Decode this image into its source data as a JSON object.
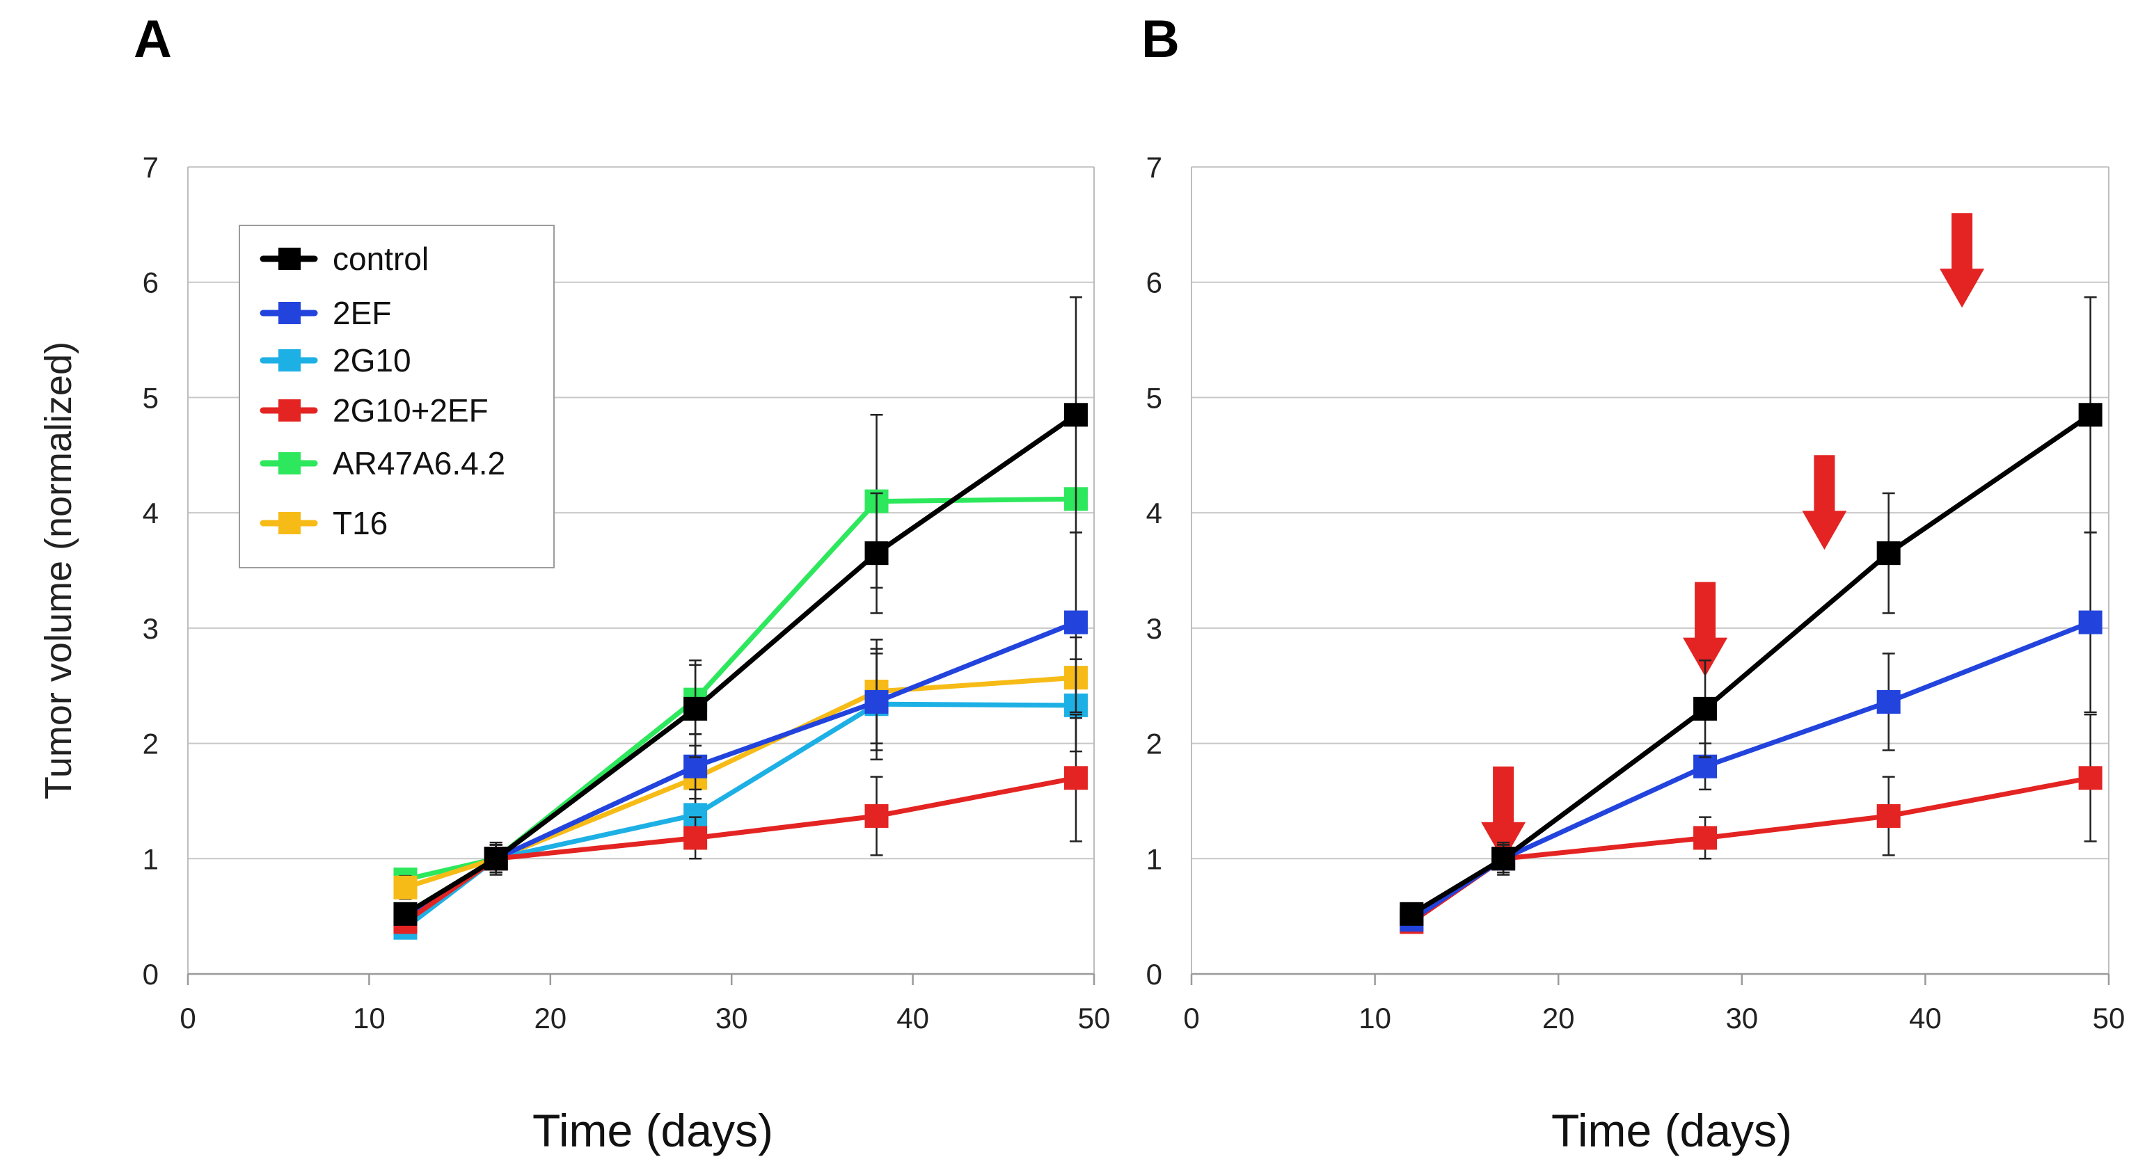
{
  "chart_data": [
    {
      "panel_label": "A",
      "type": "line",
      "title": "",
      "xlabel": "Time (days)",
      "ylabel": "Tumor volume (normalized)",
      "xlim": [
        0,
        50
      ],
      "ylim": [
        0,
        7
      ],
      "xticks": [
        0,
        10,
        20,
        30,
        40,
        50
      ],
      "yticks": [
        0,
        1,
        2,
        3,
        4,
        5,
        6,
        7
      ],
      "grid": "horizontal",
      "legend_position": "top-left",
      "x": [
        12,
        17,
        28,
        38,
        49
      ],
      "series": [
        {
          "name": "AR47A6.4.2",
          "color": "#2de85c",
          "values": [
            0.82,
            1.0,
            2.38,
            4.1,
            4.12
          ],
          "errors": [
            0.08,
            0.12,
            0.3,
            0.75,
            0.0
          ]
        },
        {
          "name": "T16",
          "color": "#f7bb17",
          "values": [
            0.75,
            1.0,
            1.7,
            2.45,
            2.57
          ],
          "errors": [
            0.1,
            0.12,
            0.28,
            0.45,
            0.35
          ]
        },
        {
          "name": "2G10",
          "color": "#1db0e5",
          "values": [
            0.4,
            1.0,
            1.38,
            2.34,
            2.33
          ],
          "errors": [
            0.05,
            0.12,
            0.22,
            0.48,
            0.4
          ]
        },
        {
          "name": "2EF",
          "color": "#2244dd",
          "values": [
            0.47,
            1.0,
            1.8,
            2.36,
            3.05
          ],
          "errors": [
            0.05,
            0.12,
            0.28,
            0.42,
            0.78
          ]
        },
        {
          "name": "2G10+2EF",
          "color": "#e32422",
          "values": [
            0.45,
            1.0,
            1.18,
            1.37,
            1.7
          ],
          "errors": [
            0.05,
            0.12,
            0.18,
            0.34,
            0.55
          ]
        },
        {
          "name": "control",
          "color": "#000000",
          "values": [
            0.52,
            1.0,
            2.3,
            3.65,
            4.85
          ],
          "errors": [
            0.05,
            0.14,
            0.42,
            0.52,
            1.02
          ]
        }
      ],
      "legend_order": [
        "control",
        "2EF",
        "2G10",
        "2G10+2EF",
        "AR47A6.4.2",
        "T16"
      ]
    },
    {
      "panel_label": "B",
      "type": "line",
      "title": "",
      "xlabel": "Time (days)",
      "ylabel": "",
      "xlim": [
        0,
        50
      ],
      "ylim": [
        0,
        7
      ],
      "xticks": [
        0,
        10,
        20,
        30,
        40,
        50
      ],
      "yticks": [
        0,
        1,
        2,
        3,
        4,
        5,
        6,
        7
      ],
      "grid": "horizontal",
      "x": [
        12,
        17,
        28,
        38,
        49
      ],
      "series": [
        {
          "name": "2G10+2EF",
          "color": "#e32422",
          "values": [
            0.45,
            1.0,
            1.18,
            1.37,
            1.7
          ],
          "errors": [
            0.05,
            0.12,
            0.18,
            0.34,
            0.55
          ]
        },
        {
          "name": "2EF",
          "color": "#2244dd",
          "values": [
            0.47,
            1.0,
            1.8,
            2.36,
            3.05
          ],
          "errors": [
            0.05,
            0.12,
            0.2,
            0.42,
            0.78
          ]
        },
        {
          "name": "control",
          "color": "#000000",
          "values": [
            0.52,
            1.0,
            2.3,
            3.65,
            4.85
          ],
          "errors": [
            0.05,
            0.14,
            0.42,
            0.52,
            1.02
          ]
        }
      ],
      "annotations": [
        {
          "type": "arrow-down",
          "color": "#e32422",
          "x": 17,
          "y": 1.8
        },
        {
          "type": "arrow-down",
          "color": "#e32422",
          "x": 28,
          "y": 3.4
        },
        {
          "type": "arrow-down",
          "color": "#e32422",
          "x": 34.5,
          "y": 4.5
        },
        {
          "type": "arrow-down",
          "color": "#e32422",
          "x": 42,
          "y": 6.6
        }
      ]
    }
  ]
}
